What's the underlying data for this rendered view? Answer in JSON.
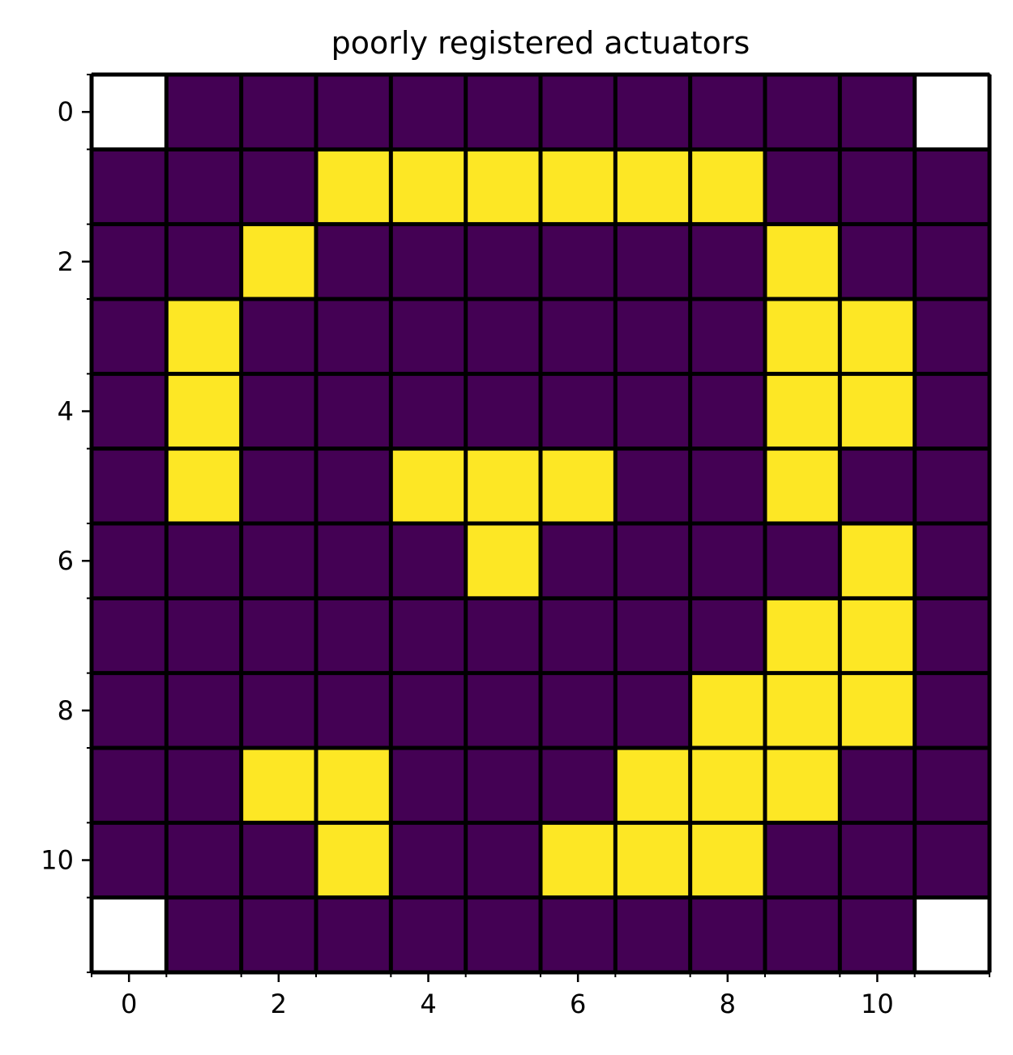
{
  "chart_data": {
    "type": "heatmap",
    "title": "poorly registered actuators",
    "xlabel": "",
    "ylabel": "",
    "x_ticks": [
      "0",
      "2",
      "4",
      "6",
      "8",
      "10"
    ],
    "y_ticks": [
      "0",
      "2",
      "4",
      "6",
      "8",
      "10"
    ],
    "xlim": [
      -0.5,
      11.5
    ],
    "ylim": [
      11.5,
      -0.5
    ],
    "minor_ticks": "every 0.5 between cells",
    "grid": true,
    "grid_color": "#000000",
    "colormap": "viridis",
    "colors": {
      "low": "#440154",
      "high": "#fde725",
      "masked": "#ffffff"
    },
    "masked_cells": [
      [
        0,
        0
      ],
      [
        0,
        11
      ],
      [
        11,
        0
      ],
      [
        11,
        11
      ]
    ],
    "values": [
      [
        null,
        0,
        0,
        0,
        0,
        0,
        0,
        0,
        0,
        0,
        0,
        null
      ],
      [
        0,
        0,
        0,
        1,
        1,
        1,
        1,
        1,
        1,
        0,
        0,
        0
      ],
      [
        0,
        0,
        1,
        0,
        0,
        0,
        0,
        0,
        0,
        1,
        0,
        0
      ],
      [
        0,
        1,
        0,
        0,
        0,
        0,
        0,
        0,
        0,
        1,
        1,
        0
      ],
      [
        0,
        1,
        0,
        0,
        0,
        0,
        0,
        0,
        0,
        1,
        1,
        0
      ],
      [
        0,
        1,
        0,
        0,
        1,
        1,
        1,
        0,
        0,
        1,
        0,
        0
      ],
      [
        0,
        0,
        0,
        0,
        0,
        1,
        0,
        0,
        0,
        0,
        1,
        0
      ],
      [
        0,
        0,
        0,
        0,
        0,
        0,
        0,
        0,
        0,
        1,
        1,
        0
      ],
      [
        0,
        0,
        0,
        0,
        0,
        0,
        0,
        0,
        1,
        1,
        1,
        0
      ],
      [
        0,
        0,
        1,
        1,
        0,
        0,
        0,
        1,
        1,
        1,
        0,
        0
      ],
      [
        0,
        0,
        0,
        1,
        0,
        0,
        1,
        1,
        1,
        0,
        0,
        0
      ],
      [
        null,
        0,
        0,
        0,
        0,
        0,
        0,
        0,
        0,
        0,
        0,
        null
      ]
    ]
  }
}
